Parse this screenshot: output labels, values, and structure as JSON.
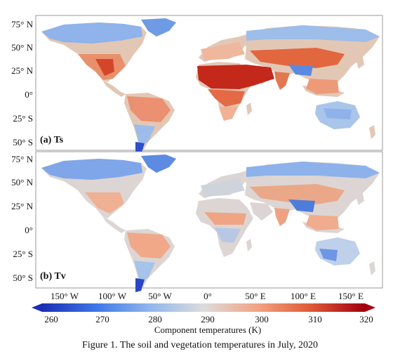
{
  "panels": [
    {
      "label": "(a) Ts",
      "variable": "soil"
    },
    {
      "label": "(b) Tv",
      "variable": "vegetation"
    }
  ],
  "lat_labels_a": [
    "75° N",
    "50° N",
    "25° N",
    "0°",
    "25° S",
    "50° S"
  ],
  "lat_labels_b": [
    "75° N",
    "50° N",
    "25° N",
    "0°",
    "25° S",
    "50° S"
  ],
  "lon_labels": [
    "150° W",
    "100° W",
    "50° W",
    "0°",
    "50° E",
    "100° E",
    "150° E"
  ],
  "colorbar": {
    "title": "Component temperatures (K)",
    "ticks": [
      "260",
      "270",
      "280",
      "290",
      "300",
      "310",
      "320"
    ],
    "min": 260,
    "max": 320,
    "colors": [
      "#1a2fb5",
      "#3f78e8",
      "#8fb5ec",
      "#dcdcdc",
      "#f2a281",
      "#e05a37",
      "#a1000f"
    ]
  },
  "caption": "Figure 1. The soil and vegetation temperatures in July, 2020",
  "colors": {
    "cold": "#3f6fe0",
    "cool": "#9cc0ec",
    "neutral": "#e3dcd7",
    "warm": "#f0a07c",
    "hot": "#d94a2a",
    "hottest": "#b01a10"
  }
}
